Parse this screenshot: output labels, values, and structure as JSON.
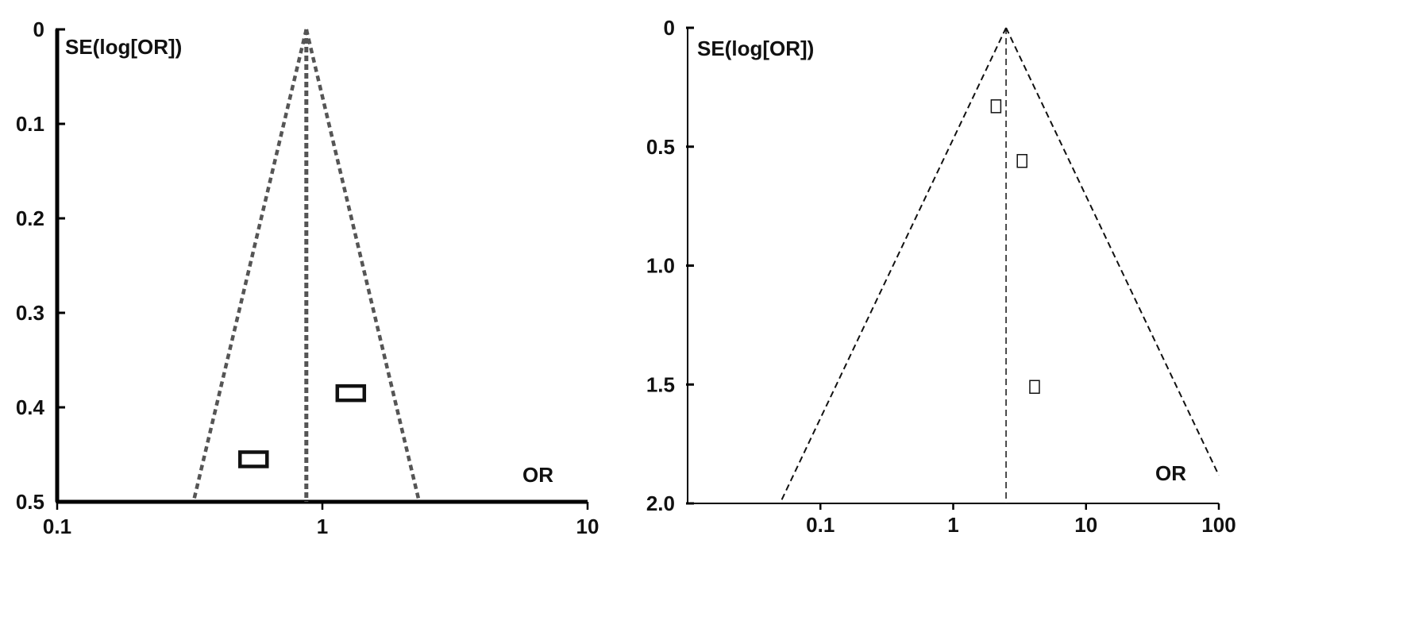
{
  "chart_data": [
    {
      "type": "scatter",
      "title": "",
      "xlabel": "OR",
      "ylabel": "SE(log[OR])",
      "x_scale": "log",
      "xlim": [
        0.1,
        10
      ],
      "ylim": [
        0,
        0.5
      ],
      "y_inverted": true,
      "x_ticks": [
        "0.1",
        "1",
        "10"
      ],
      "y_ticks": [
        "0",
        "0.1",
        "0.2",
        "0.3",
        "0.4",
        "0.5"
      ],
      "pooled_or": 0.87,
      "funnel": "95% pseudo-confidence limits (dashed)",
      "grid": false,
      "points": [
        {
          "x": 0.55,
          "y": 0.455
        },
        {
          "x": 1.28,
          "y": 0.385
        }
      ]
    },
    {
      "type": "scatter",
      "title": "",
      "xlabel": "OR",
      "ylabel": "SE(log[OR])",
      "x_scale": "log",
      "xlim": [
        0.01,
        100
      ],
      "ylim": [
        0,
        2.0
      ],
      "y_inverted": true,
      "x_ticks": [
        "0.1",
        "1",
        "10",
        "100"
      ],
      "y_ticks": [
        "0",
        "0.5",
        "1.0",
        "1.5",
        "2.0"
      ],
      "pooled_or": 2.5,
      "funnel": "95% pseudo-confidence limits (dashed)",
      "grid": false,
      "points": [
        {
          "x": 2.1,
          "y": 0.33
        },
        {
          "x": 3.3,
          "y": 0.56
        },
        {
          "x": 4.1,
          "y": 1.51
        }
      ]
    }
  ]
}
